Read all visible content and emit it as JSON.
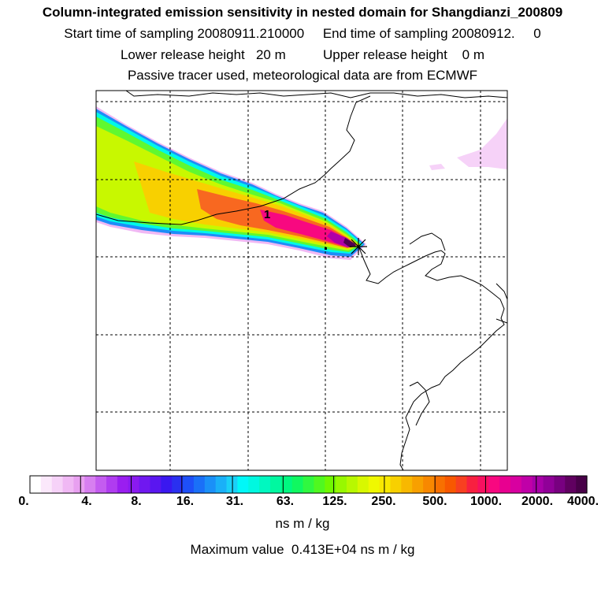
{
  "chart_data": {
    "type": "heatmap",
    "title": "Column-integrated emission sensitivity in nested domain for Shangdianzi_200809",
    "subtitle_lines": [
      "Start time of sampling 20080911.210000     End time of sampling 20080912.     0",
      "Lower release height   20 m          Upper release height    0 m",
      "Passive tracer used, meteorological data are from ECMWF"
    ],
    "colorbar": {
      "tick_labels": [
        "0.",
        "4.",
        "8.",
        "16.",
        "31.",
        "63.",
        "125.",
        "250.",
        "500.",
        "1000.",
        "2000.",
        "4000."
      ],
      "units": "ns m / kg",
      "colors": [
        "#ffffff",
        "#fbe8fb",
        "#f6d2f8",
        "#f0b8f4",
        "#e8a0f0",
        "#d77ff0",
        "#c45cf0",
        "#b03cf0",
        "#9a1ef0",
        "#8a1af0",
        "#7018f0",
        "#5a16f0",
        "#3a18f0",
        "#2a30f0",
        "#1e50f8",
        "#1a70f8",
        "#1a90f8",
        "#1ab0f8",
        "#1ad0f8",
        "#00f8f8",
        "#00f8e0",
        "#00f8c0",
        "#00f8a0",
        "#00f880",
        "#10f860",
        "#30f840",
        "#50f820",
        "#70f800",
        "#98f800",
        "#b8f800",
        "#d8f800",
        "#f0f800",
        "#f8e800",
        "#f8d000",
        "#f8b800",
        "#f8a000",
        "#f88800",
        "#f87000",
        "#f85800",
        "#f84020",
        "#f82040",
        "#f81060",
        "#f80880",
        "#e80090",
        "#d800a0",
        "#c000a8",
        "#a800a8",
        "#900098",
        "#780080",
        "#600060",
        "#480048"
      ],
      "max_label": "Maximum value  0.413E+04 ns m / kg"
    },
    "plume": {
      "description_levels": [
        "16.",
        "31.",
        "63.",
        "125.",
        "250.",
        "500.",
        "1000.",
        "2000.",
        "4000."
      ]
    },
    "marker_label": "1",
    "grid": true
  }
}
